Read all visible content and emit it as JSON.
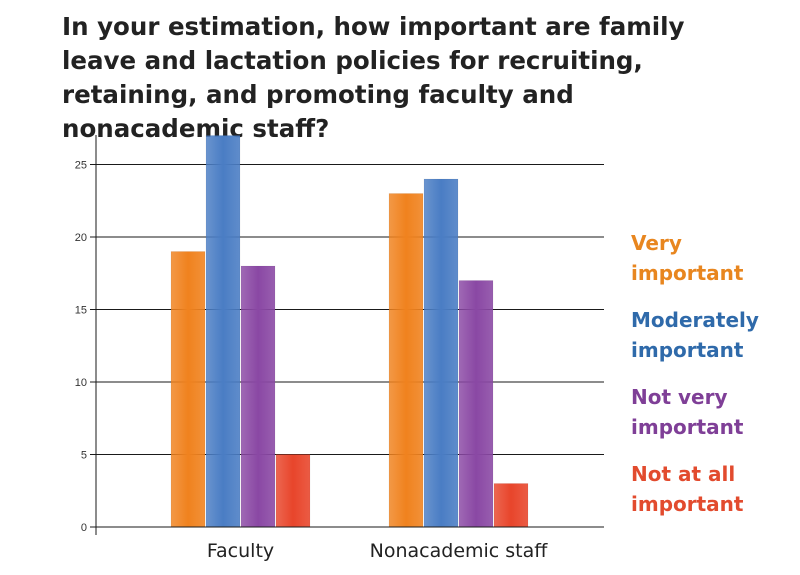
{
  "chart_data": {
    "type": "bar",
    "title": "In your estimation, how important are family leave and lactation policies for recruiting, retaining, and promoting faculty and nonacademic staff?",
    "xlabel": "",
    "ylabel": "",
    "categories": [
      "Faculty",
      "Nonacademic staff"
    ],
    "ylim": [
      0,
      28
    ],
    "yticks": [
      0,
      5,
      10,
      15,
      20,
      25
    ],
    "grid": true,
    "legend_position": "right",
    "series": [
      {
        "name": "Very important",
        "legend_lines": [
          "Very",
          "important"
        ],
        "color": "#f0821e",
        "values": [
          19,
          23
        ]
      },
      {
        "name": "Moderately important",
        "legend_lines": [
          "Moderately",
          "important"
        ],
        "color": "#4a7dc4",
        "values": [
          27,
          24
        ]
      },
      {
        "name": "Not very important",
        "legend_lines": [
          "Not very",
          "important"
        ],
        "color": "#8a48a4",
        "values": [
          18,
          17
        ]
      },
      {
        "name": "Not at all important",
        "legend_lines": [
          "Not at all",
          "important"
        ],
        "color": "#e8452b",
        "values": [
          5,
          3
        ]
      }
    ]
  },
  "legend_colors": [
    "#e8861f",
    "#2f6aaa",
    "#7f3f97",
    "#e24b2e"
  ]
}
